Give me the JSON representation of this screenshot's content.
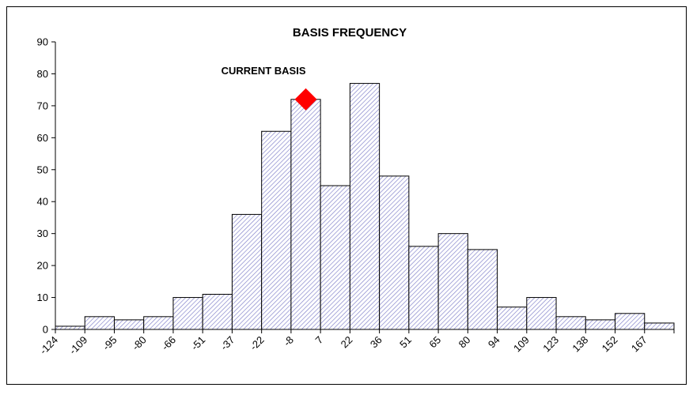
{
  "chart_data": {
    "type": "bar",
    "title": "BASIS FREQUENCY",
    "categories": [
      "-124",
      "-109",
      "-95",
      "-80",
      "-66",
      "-51",
      "-37",
      "-22",
      "-8",
      "7",
      "22",
      "36",
      "51",
      "65",
      "80",
      "94",
      "109",
      "123",
      "138",
      "152",
      "167"
    ],
    "values": [
      1,
      4,
      3,
      4,
      10,
      11,
      36,
      62,
      72,
      45,
      77,
      48,
      26,
      30,
      25,
      7,
      10,
      4,
      3,
      5,
      2
    ],
    "color": "#7d7dc8",
    "ylim": [
      0,
      90
    ],
    "yticks": [
      0,
      10,
      20,
      30,
      40,
      50,
      60,
      70,
      80,
      90
    ],
    "grid": false,
    "annotation": {
      "text": "CURRENT BASIS",
      "x": "-8",
      "y": 72,
      "color": "#ff0000"
    }
  }
}
